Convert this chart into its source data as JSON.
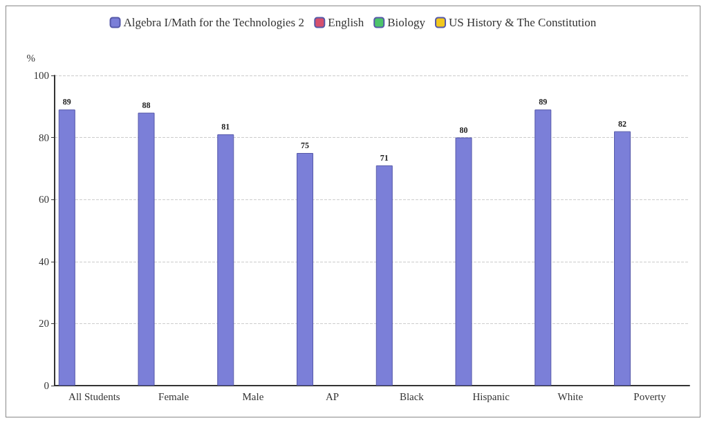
{
  "chart_data": {
    "type": "bar",
    "ylabel": "%",
    "categories": [
      "All Students",
      "Female",
      "Male",
      "AP",
      "Black",
      "Hispanic",
      "White",
      "Poverty"
    ],
    "series": [
      {
        "name": "Algebra I/Math for the Technologies 2",
        "color": "#7b7fd8",
        "values": [
          89,
          88,
          81,
          75,
          71,
          80,
          89,
          82
        ]
      },
      {
        "name": "English",
        "color": "#d6506e",
        "values": [
          null,
          null,
          null,
          null,
          null,
          null,
          null,
          null
        ]
      },
      {
        "name": "Biology",
        "color": "#4cc46a",
        "values": [
          null,
          null,
          null,
          null,
          null,
          null,
          null,
          null
        ]
      },
      {
        "name": "US History & The Constitution",
        "color": "#f2c81e",
        "values": [
          null,
          null,
          null,
          null,
          null,
          null,
          null,
          null
        ]
      }
    ],
    "ylim": [
      0,
      100
    ],
    "yticks": [
      0,
      20,
      40,
      60,
      80,
      100
    ],
    "grid": "y",
    "legend": "top",
    "data_labels": true
  }
}
